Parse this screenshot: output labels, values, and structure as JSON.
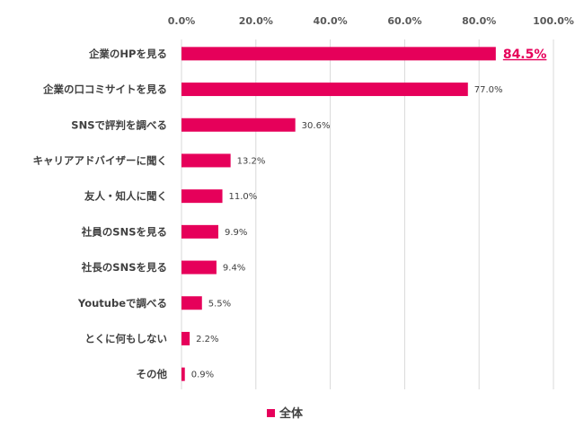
{
  "chart_data": {
    "type": "bar",
    "orientation": "horizontal",
    "categories": [
      "企業のHPを見る",
      "企業の口コミサイトを見る",
      "SNSで評判を調べる",
      "キャリアアドバイザーに聞く",
      "友人・知人に聞く",
      "社員のSNSを見る",
      "社長のSNSを見る",
      "Youtubeで調べる",
      "とくに何もしない",
      "その他"
    ],
    "series": [
      {
        "name": "全体",
        "values": [
          84.5,
          77.0,
          30.6,
          13.2,
          11.0,
          9.9,
          9.4,
          5.5,
          2.2,
          0.9
        ],
        "labels": [
          "84.5%",
          "77.0%",
          "30.6%",
          "13.2%",
          "11.0%",
          "9.9%",
          "9.4%",
          "5.5%",
          "2.2%",
          "0.9%"
        ],
        "color": "#e6005a"
      }
    ],
    "highlight_index": 0,
    "xlim": [
      0,
      100
    ],
    "xticks": [
      0,
      20,
      40,
      60,
      80,
      100
    ],
    "xtick_labels": [
      "0.0%",
      "20.0%",
      "40.0%",
      "60.0%",
      "80.0%",
      "100.0%"
    ],
    "xaxis_position": "top",
    "grid": true,
    "legend_position": "bottom",
    "gridline_color": "#d9d9d9"
  }
}
